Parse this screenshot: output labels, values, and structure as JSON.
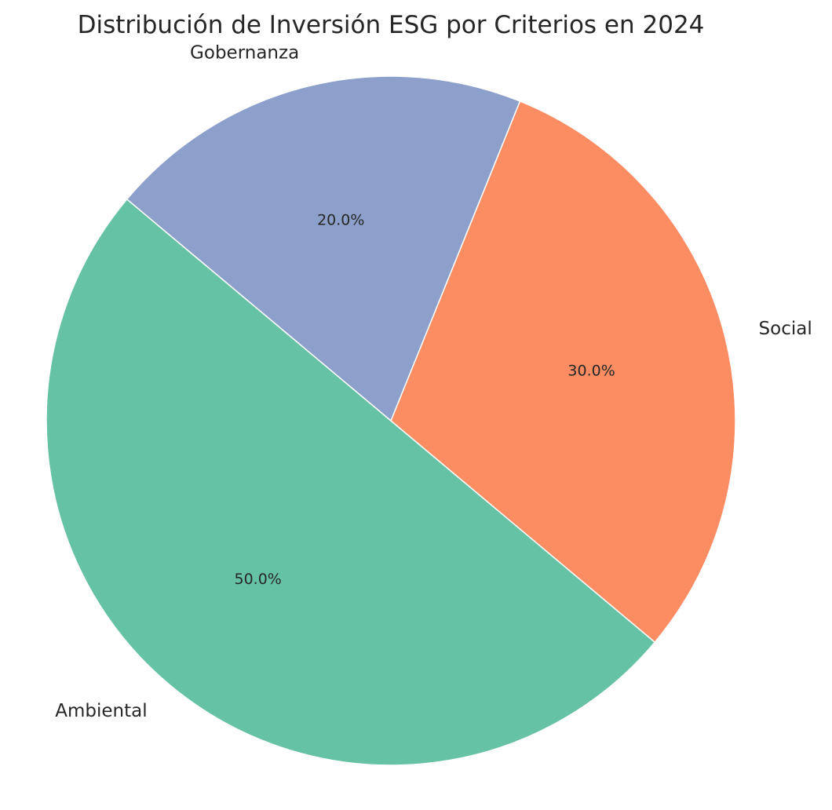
{
  "chart_data": {
    "type": "pie",
    "title": "Distribución de Inversión ESG por Criterios en 2024",
    "start_angle_deg": 140,
    "direction": "counterclockwise",
    "slices": [
      {
        "label": "Ambiental",
        "value": 50,
        "pct_label": "50.0%",
        "color": "#66c2a5"
      },
      {
        "label": "Social",
        "value": 30,
        "pct_label": "30.0%",
        "color": "#fc8d62"
      },
      {
        "label": "Gobernanza",
        "value": 20,
        "pct_label": "20.0%",
        "color": "#8da0cb"
      }
    ]
  }
}
